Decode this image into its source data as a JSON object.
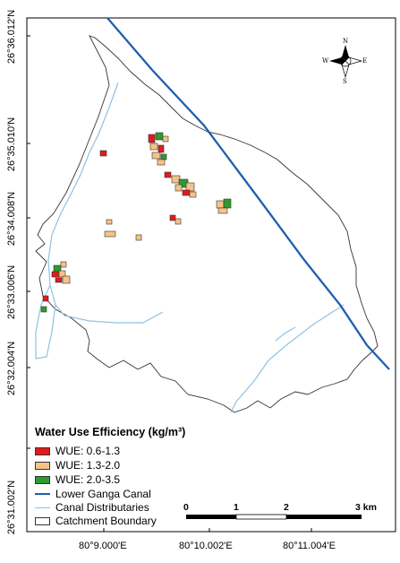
{
  "axes": {
    "lat_labels": [
      "26°36.012'N",
      "26°35.010'N",
      "26°34.008'N",
      "26°33.006'N",
      "26°32.004'N",
      "26°31.002'N"
    ],
    "lon_labels": [
      "80°9.000'E",
      "80°10.002'E",
      "80°11.004'E"
    ]
  },
  "north_arrow": {
    "n": "N",
    "s": "S",
    "e": "E",
    "w": "W",
    "icon": "compass-rose-icon"
  },
  "legend": {
    "title": "Water Use Efficiency (kg/m³)",
    "items": [
      {
        "label": "WUE: 0.6-1.3",
        "color": "#e31a1c",
        "kind": "fill"
      },
      {
        "label": "WUE: 1.3-2.0",
        "color": "#f4c387",
        "kind": "fill"
      },
      {
        "label": "WUE: 2.0-3.5",
        "color": "#2e9b2e",
        "kind": "fill"
      },
      {
        "label": "Lower Ganga Canal",
        "color": "#1f5fae",
        "kind": "line"
      },
      {
        "label": "Canal Distributaries",
        "color": "#8fc1e3",
        "kind": "line"
      },
      {
        "label": "Catchment Boundary",
        "color": "#ffffff",
        "kind": "box"
      }
    ]
  },
  "scale_bar": {
    "ticks": [
      "0",
      "1",
      "2",
      "3 km"
    ]
  },
  "colors": {
    "canal": "#1f5fae",
    "distributary": "#8fc1e3",
    "boundary": "#333333"
  }
}
